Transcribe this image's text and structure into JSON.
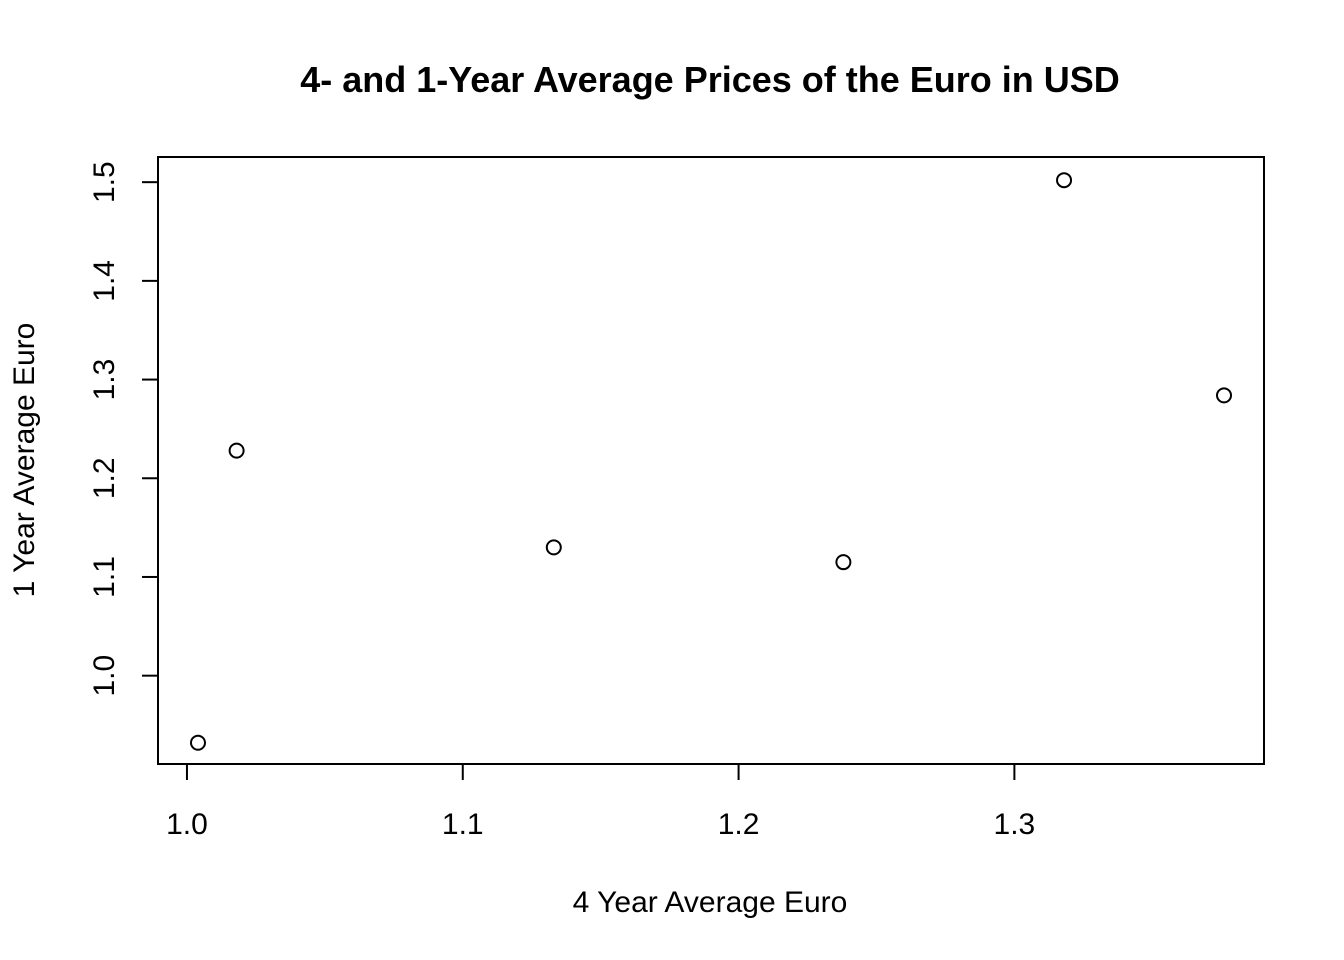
{
  "chart_data": {
    "type": "scatter",
    "title": "4- and 1-Year Average Prices of the Euro in USD",
    "xlabel": "4 Year Average Euro",
    "ylabel": "1 Year Average Euro",
    "x": [
      1.004,
      1.018,
      1.133,
      1.238,
      1.318,
      1.376
    ],
    "y": [
      0.932,
      1.228,
      1.13,
      1.115,
      1.502,
      1.284
    ],
    "xlim": [
      0.9895,
      1.3905
    ],
    "ylim": [
      0.9105,
      1.5255
    ],
    "xticks": [
      1.0,
      1.1,
      1.2,
      1.3
    ],
    "xtick_labels": [
      "1.0",
      "1.1",
      "1.2",
      "1.3"
    ],
    "yticks": [
      1.0,
      1.1,
      1.2,
      1.3,
      1.4,
      1.5
    ],
    "ytick_labels": [
      "1.0",
      "1.1",
      "1.2",
      "1.3",
      "1.4",
      "1.5"
    ],
    "marker": "open-circle",
    "grid": false,
    "legend": "none",
    "colors": {
      "points": "#000000",
      "background": "#ffffff"
    }
  }
}
